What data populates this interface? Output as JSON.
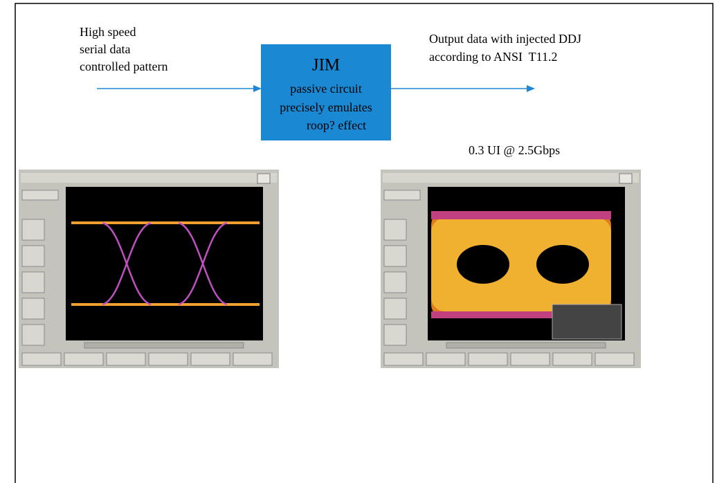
{
  "input_label": [
    "High speed",
    "serial data",
    "controlled pattern"
  ],
  "block": {
    "title": "JIM",
    "lines": [
      "passive circuit",
      "precisely emulates",
      "roop? effect"
    ]
  },
  "output_label": [
    "Output data with injected DDJ",
    "according to ANSI  T11.2"
  ],
  "output_caption": "0.3 UI @ 2.5Gbps"
}
